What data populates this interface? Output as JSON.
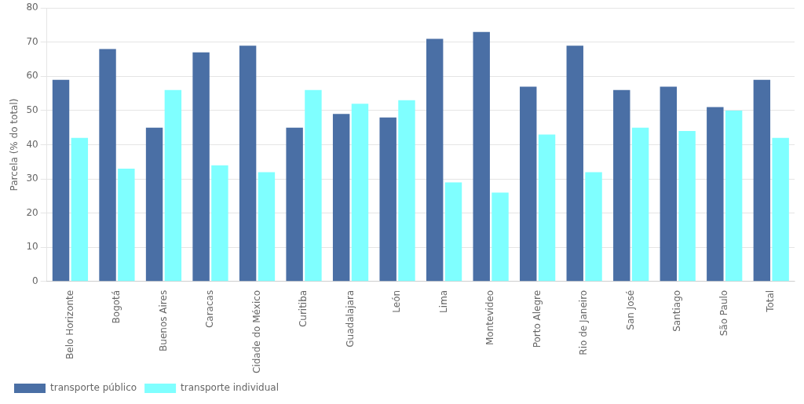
{
  "chart_data": {
    "type": "bar",
    "categories": [
      "Belo Horizonte",
      "Bogotá",
      "Buenos Aires",
      "Caracas",
      "Cidade do México",
      "Curitiba",
      "Guadalajara",
      "León",
      "Lima",
      "Montevideo",
      "Porto Alegre",
      "Rio de Janeiro",
      "San José",
      "Santiago",
      "São Paulo",
      "Total"
    ],
    "series": [
      {
        "name": "transporte público",
        "color": "#4a6fa5",
        "values": [
          59,
          68,
          45,
          67,
          69,
          45,
          49,
          48,
          71,
          73,
          57,
          69,
          56,
          57,
          51,
          59
        ]
      },
      {
        "name": "transporte individual",
        "color": "#7fffff",
        "values": [
          42,
          33,
          56,
          34,
          32,
          56,
          52,
          53,
          29,
          26,
          43,
          32,
          45,
          44,
          50,
          42
        ]
      }
    ],
    "ylabel": "Parcela (% do total)",
    "ylim": [
      0,
      80
    ],
    "yticks": [
      0,
      10,
      20,
      30,
      40,
      50,
      60,
      70,
      80
    ],
    "grid": true,
    "legend": "lower left"
  }
}
